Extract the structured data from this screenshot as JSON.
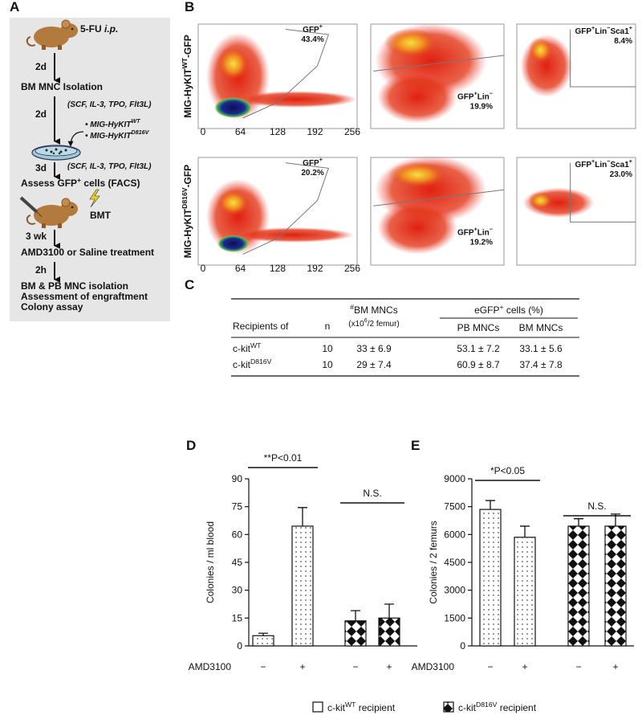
{
  "panel_a": {
    "letter": "A",
    "injection": [
      "5-FU ",
      {
        "italic": "i.p."
      }
    ],
    "day1": "2d",
    "isolation": "BM MNC Isolation",
    "cytokines_1": "(SCF, IL-3, TPO, Flt3L)",
    "day2": "2d",
    "vectors": [
      [
        "• MIG-HyKIT",
        {
          "sup": "WT"
        }
      ],
      [
        "• MIG-HyKIT",
        {
          "sup": "D816V"
        }
      ]
    ],
    "day3": "3d",
    "cytokines_2": "(SCF, IL-3, TPO, Flt3L)",
    "assess": [
      "Assess GFP",
      {
        "sup": "+"
      },
      " cells (FACS)"
    ],
    "transplant": "BMT",
    "week": "3 wk",
    "treatment": "AMD3100 or Saline treatment",
    "hours": "2h",
    "final_steps": [
      "BM & PB MNC isolation",
      "Assessment of engraftment",
      "Colony assay"
    ]
  },
  "panel_b": {
    "letter": "B",
    "x_ticks": [
      "0",
      "64",
      "128",
      "192",
      "256"
    ],
    "rows": [
      {
        "label": [
          "MIG-HyKIT",
          {
            "sup": "WT"
          },
          "-GFP"
        ],
        "gates": [
          {
            "label": [
              "GFP",
              {
                "sup": "+"
              }
            ],
            "percent": "43.4%"
          },
          {
            "label": [
              "GFP",
              {
                "sup": "+"
              },
              "Lin",
              {
                "sup": "−"
              }
            ],
            "percent": "19.9%"
          },
          {
            "label": [
              "GFP",
              {
                "sup": "+"
              },
              "Lin",
              {
                "sup": "−"
              },
              "Sca1",
              {
                "sup": "+"
              }
            ],
            "percent": "8.4%"
          }
        ]
      },
      {
        "label": [
          "MIG-HyKIT",
          {
            "sup": "D816V"
          },
          "-GFP"
        ],
        "gates": [
          {
            "label": [
              "GFP",
              {
                "sup": "+"
              }
            ],
            "percent": "20.2%"
          },
          {
            "label": [
              "GFP",
              {
                "sup": "+"
              },
              "Lin",
              {
                "sup": "−"
              }
            ],
            "percent": "19.2%"
          },
          {
            "label": [
              "GFP",
              {
                "sup": "+"
              },
              "Lin",
              {
                "sup": "−"
              },
              "Sca1",
              {
                "sup": "+"
              }
            ],
            "percent": "23.0%"
          }
        ]
      }
    ]
  },
  "panel_c": {
    "letter": "C",
    "header": {
      "recipients": "Recipients of",
      "n": "n",
      "bm_mncs": [
        {
          "sup": "#"
        },
        "BM MNCs"
      ],
      "bm_unit": [
        "(x10",
        {
          "sup": "6"
        },
        "/2 femur)"
      ],
      "egfp": [
        "eGFP",
        {
          "sup": "+"
        },
        " cells (%)"
      ],
      "pb": "PB MNCs",
      "bm": "BM MNCs"
    },
    "rows": [
      [
        [
          "c-kit",
          {
            "sup": "WT"
          }
        ],
        "10",
        "33 ± 6.9",
        "53.1 ± 7.2",
        "33.1 ± 5.6"
      ],
      [
        [
          "c-kit",
          {
            "sup": "D816V"
          }
        ],
        "10",
        "29 ± 7.4",
        "60.9 ± 8.7",
        "37.4 ± 7.8"
      ]
    ]
  },
  "chart_data": [
    {
      "type": "bar",
      "letter": "D",
      "ylabel": "Colonies / ml blood",
      "x_row_label": "AMD3100",
      "categories": [
        "−",
        "+",
        "−",
        "+"
      ],
      "values": [
        5.5,
        64.5,
        13.5,
        15
      ],
      "errors": [
        1.3,
        10,
        5.5,
        7.5
      ],
      "patterns": [
        "dots",
        "dots",
        "checker",
        "checker"
      ],
      "ylim": [
        0,
        90
      ],
      "yticks": [
        0,
        15,
        30,
        45,
        60,
        75,
        90
      ],
      "annotations": [
        {
          "text": "**P<0.01",
          "bars": [
            0,
            1
          ]
        },
        {
          "text": "N.S.",
          "bars": [
            2,
            3
          ]
        }
      ]
    },
    {
      "type": "bar",
      "letter": "E",
      "ylabel": "Colonies / 2 femurs",
      "x_row_label": "AMD3100",
      "categories": [
        "−",
        "+",
        "−",
        "+"
      ],
      "values": [
        7350,
        5850,
        6450,
        6450
      ],
      "errors": [
        480,
        600,
        400,
        650
      ],
      "patterns": [
        "dots",
        "dots",
        "checker",
        "checker"
      ],
      "ylim": [
        0,
        9000
      ],
      "yticks": [
        0,
        1500,
        3000,
        4500,
        6000,
        7500,
        9000
      ],
      "annotations": [
        {
          "text": "*P<0.05",
          "bars": [
            0,
            1
          ]
        },
        {
          "text": "N.S.",
          "bars": [
            2,
            3
          ]
        }
      ]
    }
  ],
  "legend": {
    "items": [
      {
        "label": [
          "c-kit",
          {
            "sup": "WT"
          },
          " recipient"
        ],
        "pattern": "none"
      },
      {
        "label": [
          "c-kit",
          {
            "sup": "D816V"
          },
          " recipient"
        ],
        "pattern": "checker"
      }
    ]
  }
}
